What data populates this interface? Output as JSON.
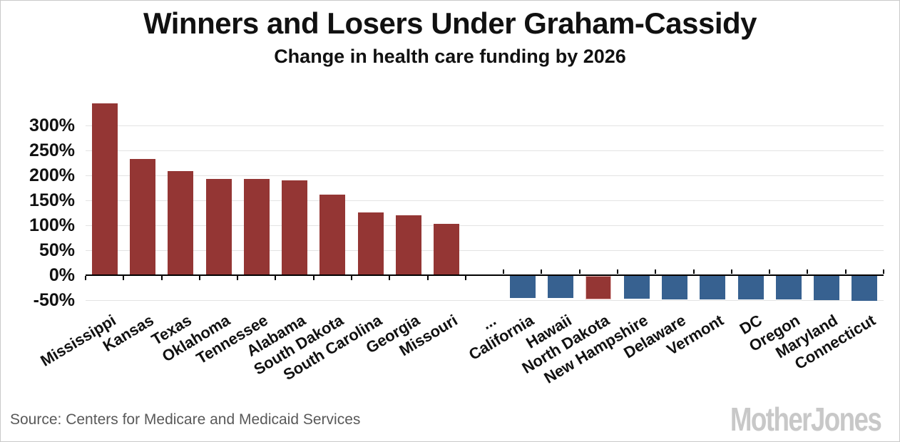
{
  "title": "Winners and Losers Under Graham-Cassidy",
  "subtitle": "Change in health care funding by 2026",
  "footer": {
    "source": "Source: Centers for Medicare and Medicaid Services",
    "logo": "MotherJones"
  },
  "colors": {
    "gain": "#943634",
    "loss": "#376190",
    "highlight_outline": "#e5b8b7",
    "grid": "#e3e3e3",
    "axis": "#000000",
    "heading_text": "#111111",
    "source_text": "#595959",
    "logo_text": "#c8c8c8",
    "frame_border": "#c9c9c9"
  },
  "chart_data": {
    "type": "bar",
    "title": "Winners and Losers Under Graham-Cassidy",
    "subtitle": "Change in health care funding by 2026",
    "xlabel": "",
    "ylabel": "",
    "unit": "%",
    "grid": true,
    "ylim": [
      -57,
      350
    ],
    "y_ticks": [
      "300%",
      "250%",
      "200%",
      "150%",
      "100%",
      "50%",
      "0%",
      "-50%"
    ],
    "y_tick_values": [
      300,
      250,
      200,
      150,
      100,
      50,
      0,
      -50
    ],
    "categories": [
      "Mississippi",
      "Kansas",
      "Texas",
      "Oklahoma",
      "Tennessee",
      "Alabama",
      "South Dakota",
      "South Carolina",
      "Georgia",
      "Missouri",
      "...",
      "California",
      "Hawaii",
      "North Dakota",
      "New Hampshire",
      "Delaware",
      "Vermont",
      "DC",
      "Oregon",
      "Maryland",
      "Connecticut"
    ],
    "values": [
      345,
      233,
      209,
      193,
      193,
      190,
      161,
      126,
      120,
      103,
      null,
      -45,
      -46,
      -48,
      -47,
      -48,
      -48,
      -49,
      -49,
      -50,
      -51
    ],
    "bar_colors": [
      "#943634",
      "#943634",
      "#943634",
      "#943634",
      "#943634",
      "#943634",
      "#943634",
      "#943634",
      "#943634",
      "#943634",
      null,
      "#376190",
      "#376190",
      "#943634",
      "#376190",
      "#376190",
      "#376190",
      "#376190",
      "#376190",
      "#376190",
      "#376190"
    ],
    "highlight": {
      "index": 13,
      "outline": "#e5b8b7"
    }
  }
}
